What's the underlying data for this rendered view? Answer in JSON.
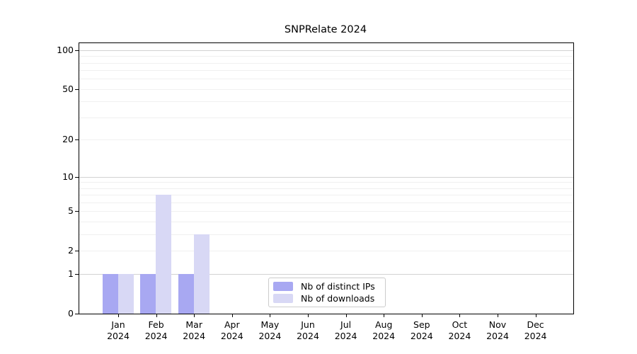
{
  "chart_data": {
    "type": "bar",
    "title": "SNPRelate 2024",
    "categories": [
      "Jan",
      "Feb",
      "Mar",
      "Apr",
      "May",
      "Jun",
      "Jul",
      "Aug",
      "Sep",
      "Oct",
      "Nov",
      "Dec"
    ],
    "x_tick_year": "2024",
    "series": [
      {
        "name": "Nb of distinct IPs",
        "color": "#a8a8f2",
        "values": [
          1,
          1,
          1,
          0,
          0,
          0,
          0,
          0,
          0,
          0,
          0,
          0
        ]
      },
      {
        "name": "Nb of downloads",
        "color": "#d8d8f5",
        "values": [
          1,
          7,
          3,
          0,
          0,
          0,
          0,
          0,
          0,
          0,
          0,
          0
        ]
      }
    ],
    "ylabel": "",
    "xlabel": "",
    "y_scale": "log1p",
    "ylim": [
      0,
      113
    ],
    "y_ticks": [
      100,
      50,
      20,
      10,
      5,
      2,
      1,
      0
    ],
    "grid": {
      "major": [
        1,
        10,
        100
      ],
      "minor": [
        2,
        3,
        4,
        5,
        6,
        7,
        8,
        9,
        20,
        30,
        40,
        50,
        60,
        70,
        80,
        90
      ]
    },
    "legend_position": "lower center"
  }
}
